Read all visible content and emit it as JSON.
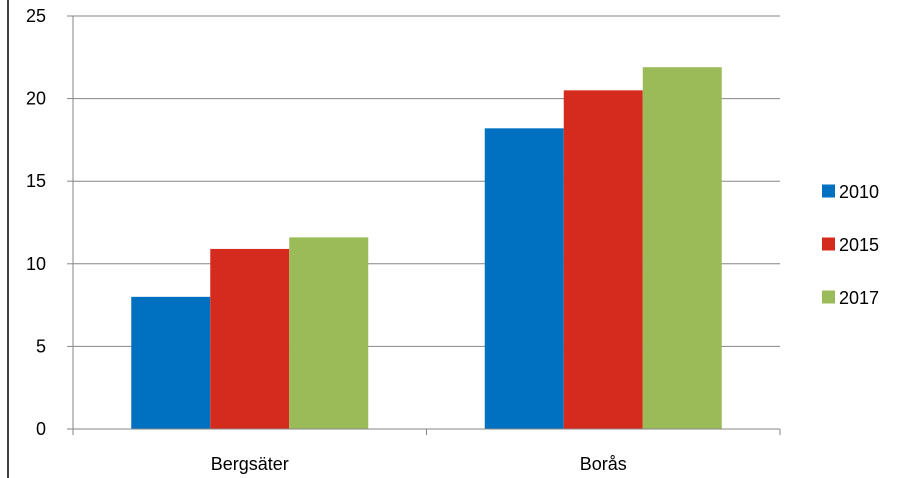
{
  "chart_data": {
    "type": "bar",
    "categories": [
      "Bergsäter",
      "Borås"
    ],
    "series": [
      {
        "name": "2010",
        "values": [
          8.0,
          18.2
        ],
        "color": "#0070C0"
      },
      {
        "name": "2015",
        "values": [
          10.9,
          20.5
        ],
        "color": "#D52B1E"
      },
      {
        "name": "2017",
        "values": [
          11.6,
          21.9
        ],
        "color": "#9BBB59"
      }
    ],
    "title": "",
    "xlabel": "",
    "ylabel": "",
    "ylim": [
      0,
      25
    ],
    "yticks": [
      "0",
      "5",
      "10",
      "15",
      "20",
      "25"
    ],
    "grid": true,
    "legend_position": "right"
  }
}
